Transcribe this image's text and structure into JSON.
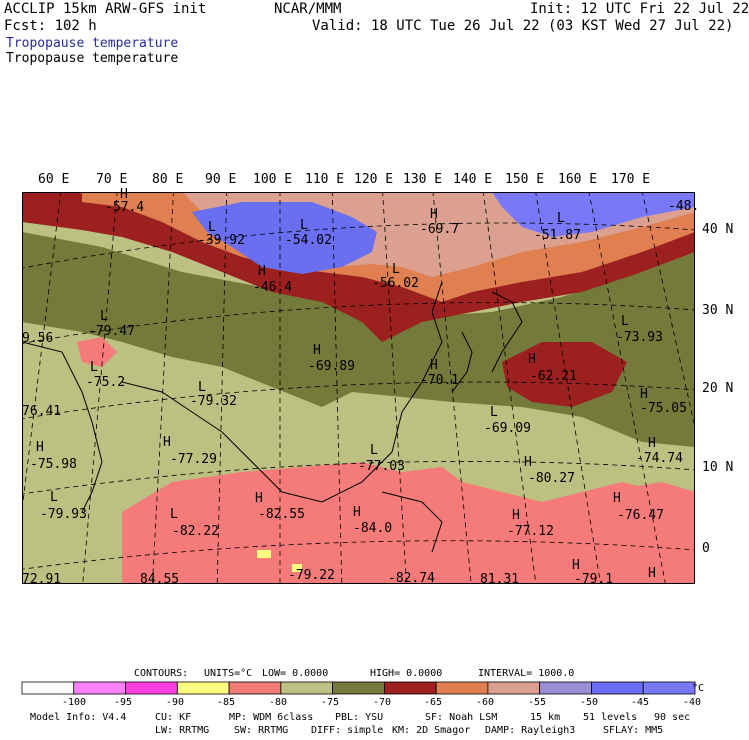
{
  "header": {
    "model": "ACCLIP 15km ARW-GFS init",
    "org": "NCAR/MMM",
    "init": "Init: 12 UTC Fri 22 Jul 22",
    "fcst": "Fcst: 102 h",
    "valid": "Valid: 18 UTC Tue 26 Jul 22 (03 KST Wed 27 Jul 22)",
    "field_color": "Tropopause temperature",
    "field_contour": "Tropopause temperature"
  },
  "lon_labels": [
    "60 E",
    "70 E",
    "80 E",
    "90 E",
    "100 E",
    "110 E",
    "120 E",
    "130 E",
    "140 E",
    "150 E",
    "160 E",
    "170 E"
  ],
  "lat_labels": [
    "40 N",
    "30 N",
    "20 N",
    "10 N",
    "0"
  ],
  "map_labels": [
    {
      "t": "-57.4"
    },
    {
      "t": "-39.92"
    },
    {
      "t": "-54.02"
    },
    {
      "t": "-69.7"
    },
    {
      "t": "-51.87"
    },
    {
      "t": "-48."
    },
    {
      "t": "-46.4"
    },
    {
      "t": "-56.02"
    },
    {
      "t": "-79.47"
    },
    {
      "t": "9.56"
    },
    {
      "t": "-73.93"
    },
    {
      "t": "-69.89"
    },
    {
      "t": "-75.2"
    },
    {
      "t": "-70.1"
    },
    {
      "t": "-62.21"
    },
    {
      "t": "-79.32"
    },
    {
      "t": "76.41"
    },
    {
      "t": "-75.05"
    },
    {
      "t": "-69.09"
    },
    {
      "t": "-75.98"
    },
    {
      "t": "-77.29"
    },
    {
      "t": "-74.74"
    },
    {
      "t": "-77.03"
    },
    {
      "t": "-80.27"
    },
    {
      "t": "-79.93"
    },
    {
      "t": "-82.55"
    },
    {
      "t": "-76.47"
    },
    {
      "t": "-82.22"
    },
    {
      "t": "-84.0"
    },
    {
      "t": "-77.12"
    },
    {
      "t": "72.91"
    },
    {
      "t": "-79.22"
    },
    {
      "t": "-82.74"
    },
    {
      "t": "81.31"
    },
    {
      "t": "-79.1"
    },
    {
      "t": "84.55"
    }
  ],
  "hl_markers": [
    "H",
    "L",
    "L",
    "H",
    "L",
    "H",
    "L",
    "L",
    "L",
    "H",
    "L",
    "H",
    "H",
    "L",
    "H",
    "L",
    "H",
    "H",
    "H",
    "L",
    "H",
    "L",
    "H",
    "H",
    "L",
    "H",
    "H",
    "H",
    "H"
  ],
  "contour_info": {
    "contours": "CONTOURS:",
    "units": "UNITS=°C",
    "low": "LOW= 0.0000",
    "high": "HIGH= 0.0000",
    "interval": "INTERVAL= 1000.0"
  },
  "legend": {
    "labels": [
      "-100",
      "-95",
      "-90",
      "-85",
      "-80",
      "-75",
      "-70",
      "-65",
      "-60",
      "-55",
      "-50",
      "-45",
      "-40"
    ],
    "unit": "°C",
    "colors": [
      "#ffffff",
      "#ff80ff",
      "#ff40e0",
      "#ffff80",
      "#f57a7a",
      "#bcc080",
      "#737a3a",
      "#9c2020",
      "#e08050",
      "#dca090",
      "#9a90d8",
      "#6a6ef0",
      "#7878f8"
    ]
  },
  "footer": {
    "line1": [
      "Model Info: V4.4",
      "CU: KF",
      "MP: WDM 6class",
      "PBL: YSU",
      "SF: Noah LSM",
      "15 km",
      "51 levels",
      "90 sec"
    ],
    "line2": [
      "LW: RRTMG",
      "SW: RRTMG",
      "DIFF: simple",
      "KM: 2D Smagor",
      "DAMP: Rayleigh3",
      "SFLAY: MM5"
    ]
  }
}
